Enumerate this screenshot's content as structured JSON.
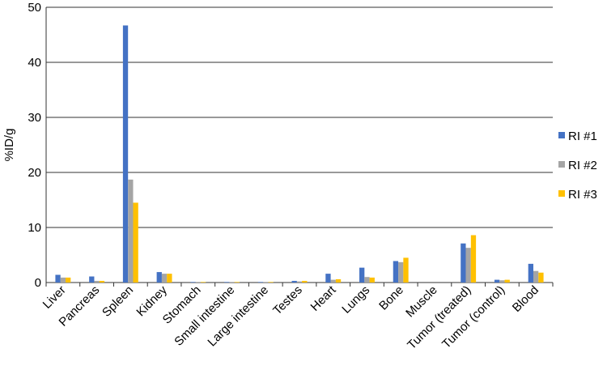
{
  "chart_data": {
    "type": "bar",
    "y_label": "%ID/g",
    "categories": [
      "Liver",
      "Pancreas",
      "Spleen",
      "Kidney",
      "Stomach",
      "Small intestine",
      "Large intestine",
      "Testes",
      "Heart",
      "Lungs",
      "Bone",
      "Muscle",
      "Tumor (treated)",
      "Tumor (control)",
      "Blood"
    ],
    "series": [
      {
        "name": "RI #1",
        "color": "#4472c4",
        "values": [
          1.4,
          1.1,
          46.7,
          1.9,
          0.1,
          0.1,
          0.1,
          0.3,
          1.6,
          2.7,
          3.9,
          0,
          7.1,
          0.5,
          3.4
        ]
      },
      {
        "name": "RI #2",
        "color": "#a5a5a5",
        "values": [
          0.9,
          0.3,
          18.7,
          1.6,
          0.1,
          0.1,
          0.1,
          0.2,
          0.5,
          1.0,
          3.7,
          0,
          6.3,
          0.4,
          2.1
        ]
      },
      {
        "name": "RI #3",
        "color": "#ffc000",
        "values": [
          0.9,
          0.3,
          14.5,
          1.6,
          0.1,
          0.1,
          0.1,
          0.3,
          0.6,
          0.9,
          4.5,
          0,
          8.6,
          0.5,
          1.8
        ]
      }
    ],
    "ylim": [
      0,
      50
    ],
    "yticks": [
      0,
      10,
      20,
      30,
      40,
      50
    ],
    "grid": true,
    "legend": "right"
  }
}
